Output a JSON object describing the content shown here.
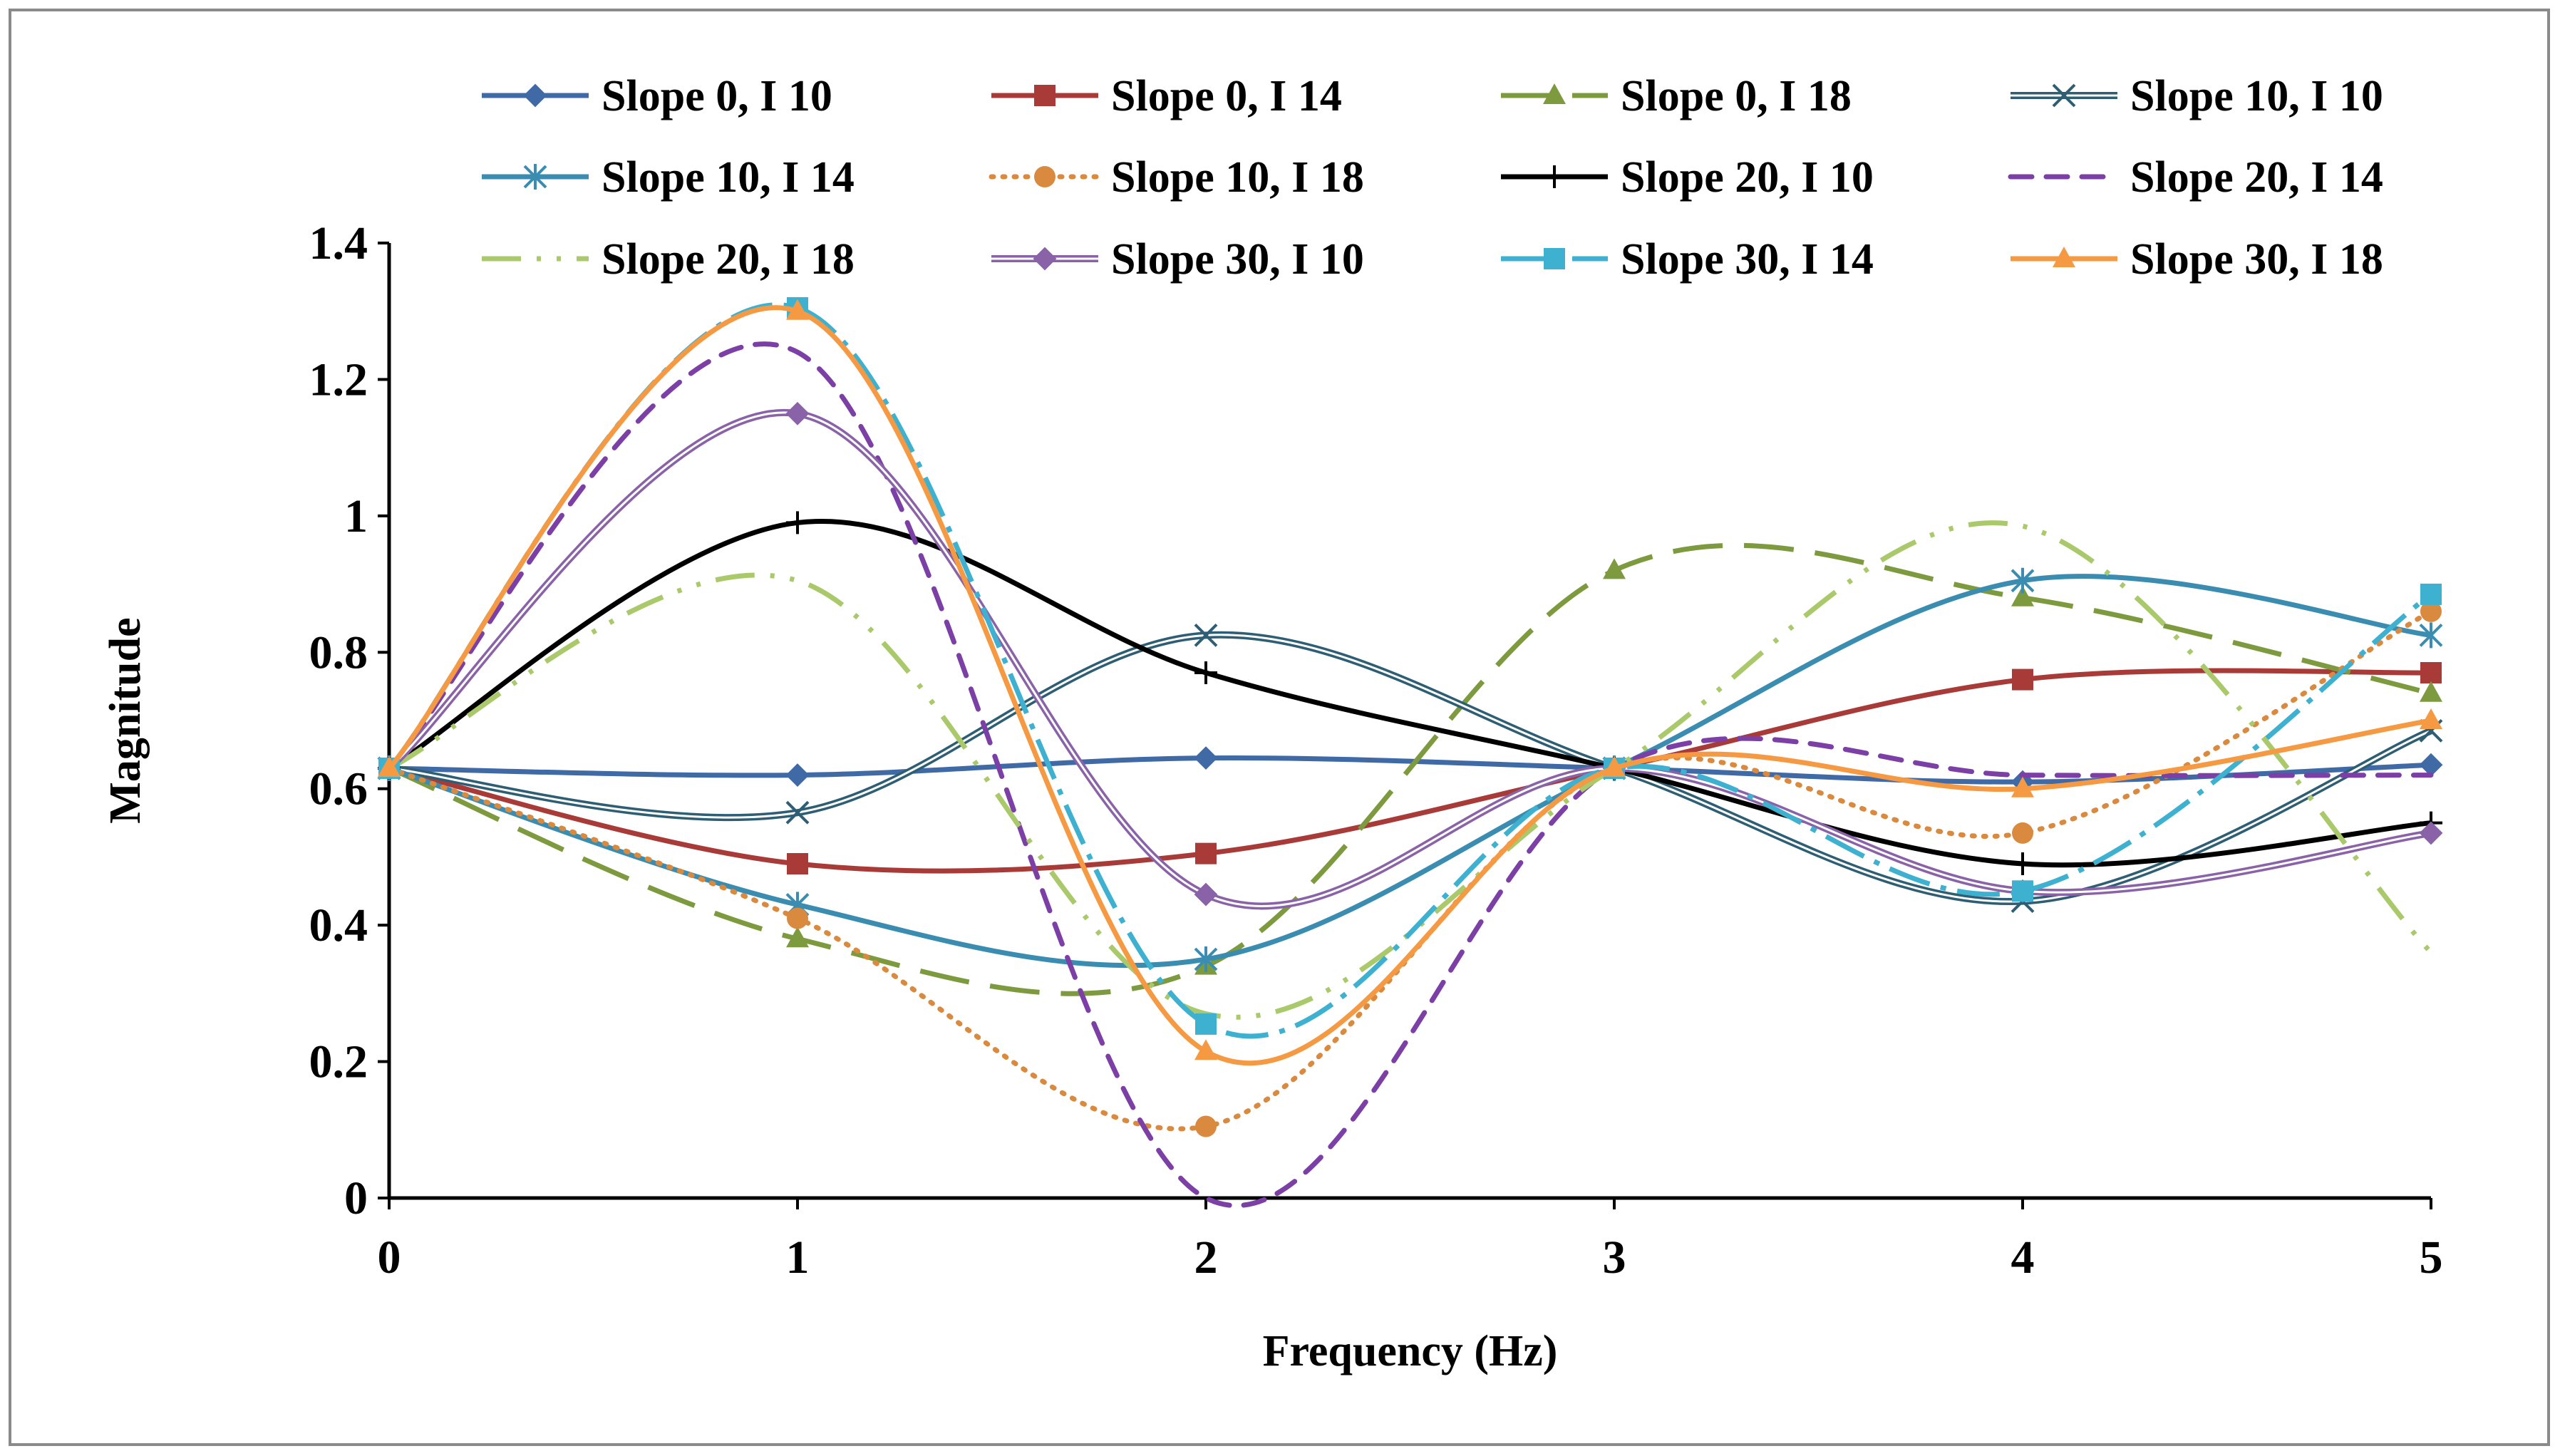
{
  "chart_data": {
    "type": "line",
    "title": "",
    "xlabel": "Frequency (Hz)",
    "ylabel": "Magnitude",
    "x": [
      0,
      1,
      2,
      3,
      4,
      5
    ],
    "xlim": [
      0,
      5
    ],
    "ylim": [
      0,
      1.4
    ],
    "xticks": [
      "0",
      "1",
      "2",
      "3",
      "4",
      "5"
    ],
    "yticks": [
      "0",
      "0.2",
      "0.4",
      "0.6",
      "0.8",
      "1",
      "1.2",
      "1.4"
    ],
    "grid": false,
    "legend_position": "top",
    "series": [
      {
        "name": "Slope 0, I 10",
        "values": [
          0.63,
          0.62,
          0.645,
          0.63,
          0.61,
          0.635
        ],
        "color": "#3f6aa6",
        "dash": "",
        "marker": "diamond",
        "double": false
      },
      {
        "name": "Slope 0, I 14",
        "values": [
          0.63,
          0.49,
          0.505,
          0.63,
          0.76,
          0.77
        ],
        "color": "#a83b38",
        "dash": "",
        "marker": "square",
        "double": false
      },
      {
        "name": "Slope 0, I 18",
        "values": [
          0.63,
          0.38,
          0.34,
          0.92,
          0.88,
          0.74
        ],
        "color": "#7d9a3f",
        "dash": "70,30",
        "marker": "triangle",
        "double": false
      },
      {
        "name": "Slope 10, I 10",
        "values": [
          0.63,
          0.565,
          0.825,
          0.63,
          0.435,
          0.685
        ],
        "color": "#2e5e73",
        "dash": "",
        "marker": "x",
        "double": true
      },
      {
        "name": "Slope 10, I 14",
        "values": [
          0.63,
          0.43,
          0.35,
          0.63,
          0.905,
          0.825
        ],
        "color": "#3a8db0",
        "dash": "",
        "marker": "asterisk",
        "double": false
      },
      {
        "name": "Slope 10, I 18",
        "values": [
          0.63,
          0.41,
          0.105,
          0.63,
          0.535,
          0.86
        ],
        "color": "#d98a3f",
        "dash": "3,13",
        "marker": "circle",
        "double": false
      },
      {
        "name": "Slope 20, I 10",
        "values": [
          0.63,
          0.99,
          0.77,
          0.63,
          0.49,
          0.55
        ],
        "color": "#000000",
        "dash": "",
        "marker": "plus",
        "double": false
      },
      {
        "name": "Slope 20, I 14",
        "values": [
          0.63,
          1.24,
          0.0,
          0.63,
          0.62,
          0.62
        ],
        "color": "#7b3fa6",
        "dash": "30,20",
        "marker": "none",
        "double": false
      },
      {
        "name": "Slope 20, I 18",
        "values": [
          0.63,
          0.905,
          0.27,
          0.63,
          0.985,
          0.36
        ],
        "color": "#a9c96a",
        "dash": "55,22,6,22,6,22",
        "marker": "none",
        "double": false
      },
      {
        "name": "Slope 30, I 10",
        "values": [
          0.63,
          1.15,
          0.445,
          0.63,
          0.45,
          0.535
        ],
        "color": "#8a62a8",
        "dash": "",
        "marker": "diamond",
        "double": true
      },
      {
        "name": "Slope 30, I 14",
        "values": [
          0.63,
          1.305,
          0.255,
          0.63,
          0.45,
          0.885
        ],
        "color": "#3fb1d0",
        "dash": "60,16,8,16",
        "marker": "square",
        "double": false
      },
      {
        "name": "Slope 30, I 18",
        "values": [
          0.63,
          1.3,
          0.215,
          0.63,
          0.6,
          0.7
        ],
        "color": "#f59a42",
        "dash": "",
        "marker": "triangle",
        "double": false
      }
    ]
  }
}
